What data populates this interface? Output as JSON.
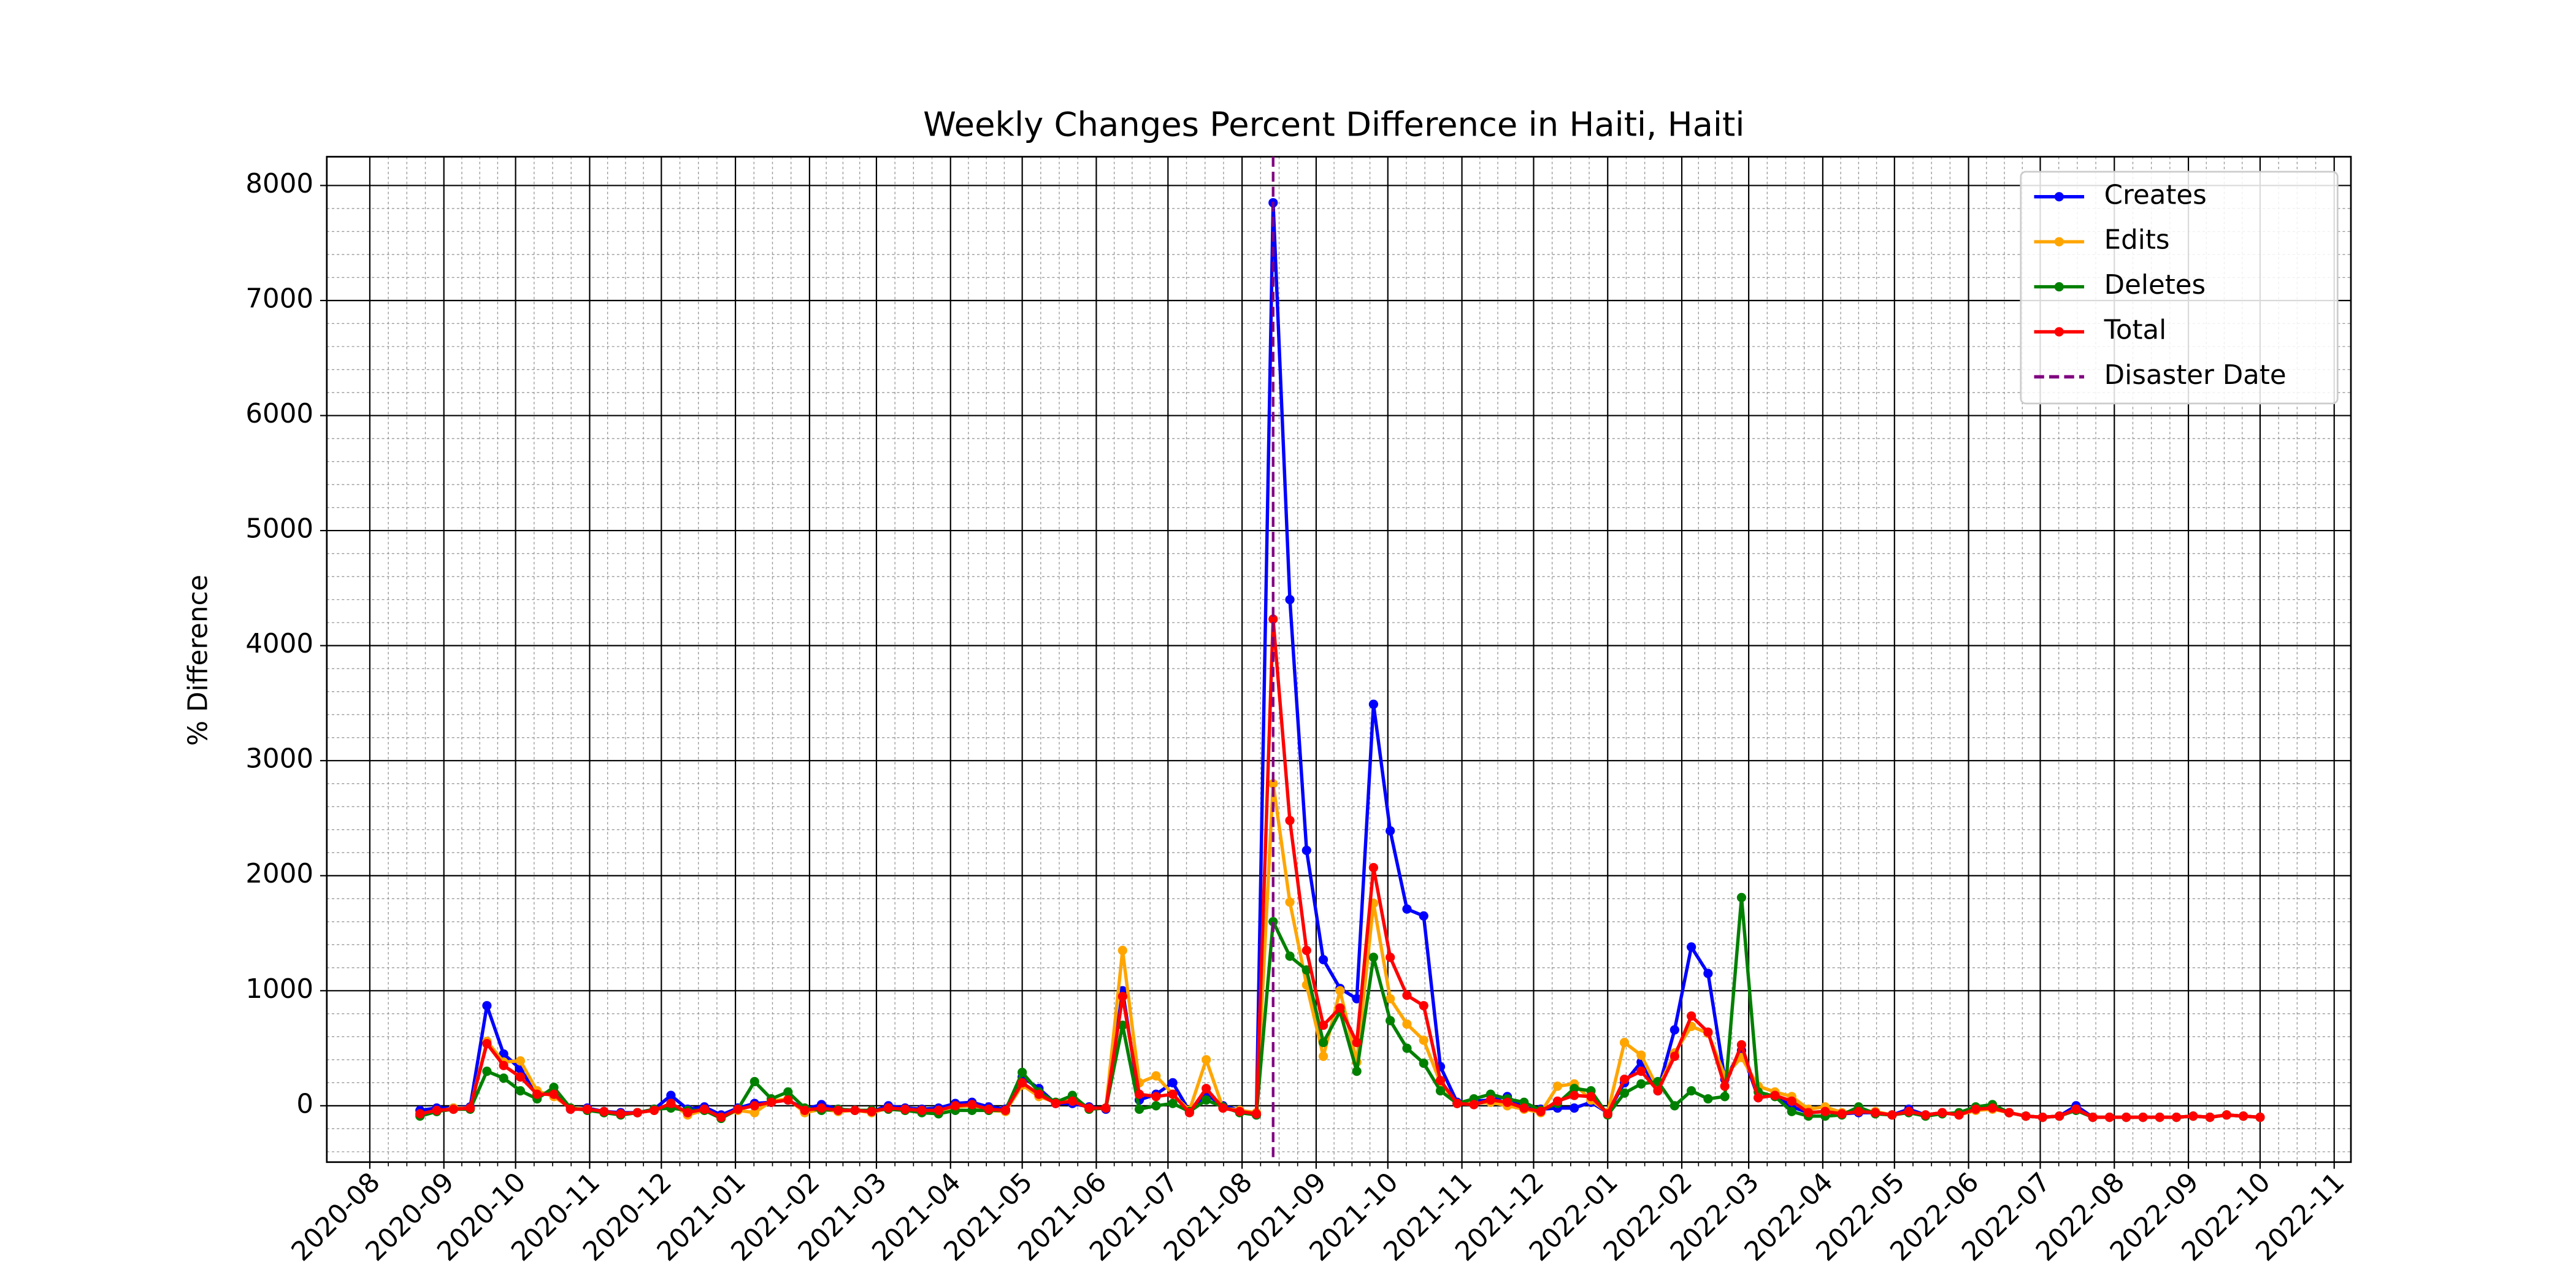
{
  "chart_data": {
    "type": "line",
    "title": "Weekly Changes Percent Difference in Haiti, Haiti",
    "y_label": "% Difference",
    "x": [
      "2020-08-22",
      "2020-08-29",
      "2020-09-05",
      "2020-09-12",
      "2020-09-19",
      "2020-09-26",
      "2020-10-03",
      "2020-10-10",
      "2020-10-17",
      "2020-10-24",
      "2020-10-31",
      "2020-11-07",
      "2020-11-14",
      "2020-11-21",
      "2020-11-28",
      "2020-12-05",
      "2020-12-12",
      "2020-12-19",
      "2020-12-26",
      "2021-01-02",
      "2021-01-09",
      "2021-01-16",
      "2021-01-23",
      "2021-01-30",
      "2021-02-06",
      "2021-02-13",
      "2021-02-20",
      "2021-02-27",
      "2021-03-06",
      "2021-03-13",
      "2021-03-20",
      "2021-03-27",
      "2021-04-03",
      "2021-04-10",
      "2021-04-17",
      "2021-04-24",
      "2021-05-01",
      "2021-05-08",
      "2021-05-15",
      "2021-05-22",
      "2021-05-29",
      "2021-06-05",
      "2021-06-12",
      "2021-06-19",
      "2021-06-26",
      "2021-07-03",
      "2021-07-10",
      "2021-07-17",
      "2021-07-24",
      "2021-07-31",
      "2021-08-07",
      "2021-08-14",
      "2021-08-21",
      "2021-08-28",
      "2021-09-04",
      "2021-09-11",
      "2021-09-18",
      "2021-09-25",
      "2021-10-02",
      "2021-10-09",
      "2021-10-16",
      "2021-10-23",
      "2021-10-30",
      "2021-11-06",
      "2021-11-13",
      "2021-11-20",
      "2021-11-27",
      "2021-12-04",
      "2021-12-11",
      "2021-12-18",
      "2021-12-25",
      "2022-01-01",
      "2022-01-08",
      "2022-01-15",
      "2022-01-22",
      "2022-01-29",
      "2022-02-05",
      "2022-02-12",
      "2022-02-19",
      "2022-02-26",
      "2022-03-05",
      "2022-03-12",
      "2022-03-19",
      "2022-03-26",
      "2022-04-02",
      "2022-04-09",
      "2022-04-16",
      "2022-04-23",
      "2022-04-30",
      "2022-05-07",
      "2022-05-14",
      "2022-05-21",
      "2022-05-28",
      "2022-06-04",
      "2022-06-11",
      "2022-06-18",
      "2022-06-25",
      "2022-07-02",
      "2022-07-09",
      "2022-07-16",
      "2022-07-23",
      "2022-07-30",
      "2022-08-06",
      "2022-08-13",
      "2022-08-20",
      "2022-08-27",
      "2022-09-03",
      "2022-09-10",
      "2022-09-17",
      "2022-09-24",
      "2022-10-01"
    ],
    "series": [
      {
        "name": "Creates",
        "color": "#0000ff",
        "values": [
          -40,
          -20,
          -20,
          -10,
          870,
          450,
          320,
          100,
          120,
          -30,
          -20,
          -50,
          -60,
          -60,
          -30,
          90,
          -30,
          -10,
          -80,
          -20,
          20,
          30,
          50,
          -30,
          10,
          -30,
          -40,
          -50,
          0,
          -20,
          -30,
          -20,
          20,
          30,
          -10,
          -30,
          250,
          150,
          20,
          20,
          -10,
          -30,
          1000,
          50,
          100,
          200,
          -50,
          100,
          0,
          -40,
          -80,
          7850,
          4400,
          2220,
          1270,
          1020,
          930,
          3490,
          2390,
          1710,
          1650,
          340,
          30,
          40,
          50,
          80,
          -20,
          -30,
          -20,
          -20,
          30,
          -60,
          200,
          380,
          130,
          660,
          1380,
          1150,
          230,
          480,
          70,
          100,
          -10,
          -60,
          -50,
          -70,
          -60,
          -60,
          -80,
          -30,
          -80,
          -60,
          -80,
          -30,
          -20,
          -60,
          -90,
          -100,
          -90,
          0,
          -100,
          -100,
          -100,
          -100,
          -100,
          -100,
          -90,
          -100,
          -80,
          -90,
          -100
        ]
      },
      {
        "name": "Edits",
        "color": "#ffa500",
        "values": [
          -80,
          -50,
          -20,
          -20,
          560,
          380,
          390,
          130,
          80,
          -20,
          -30,
          -60,
          -70,
          -60,
          -40,
          20,
          -80,
          -40,
          -100,
          -40,
          -60,
          40,
          60,
          -60,
          -30,
          -50,
          -40,
          -60,
          -20,
          -40,
          -50,
          -40,
          -10,
          0,
          -40,
          -50,
          180,
          80,
          30,
          60,
          -30,
          -20,
          1350,
          200,
          260,
          100,
          -40,
          400,
          -20,
          -40,
          -60,
          2800,
          1770,
          1050,
          430,
          1000,
          380,
          1760,
          930,
          710,
          570,
          200,
          20,
          20,
          30,
          0,
          -30,
          -60,
          170,
          190,
          50,
          -60,
          550,
          440,
          150,
          460,
          690,
          630,
          260,
          420,
          170,
          120,
          80,
          -30,
          -10,
          -60,
          -40,
          -50,
          -80,
          -50,
          -80,
          -60,
          -80,
          -40,
          -30,
          -60,
          -90,
          -100,
          -90,
          -30,
          -100,
          -100,
          -100,
          -100,
          -100,
          -100,
          -90,
          -100,
          -80,
          -90,
          -100
        ]
      },
      {
        "name": "Deletes",
        "color": "#008000",
        "values": [
          -90,
          -50,
          -30,
          -30,
          300,
          240,
          130,
          60,
          160,
          -20,
          -40,
          -60,
          -80,
          -60,
          -30,
          -20,
          -40,
          -40,
          -110,
          -30,
          210,
          60,
          120,
          -20,
          -40,
          -30,
          -40,
          -40,
          -30,
          -40,
          -60,
          -70,
          -40,
          -40,
          -40,
          -40,
          290,
          120,
          30,
          90,
          -30,
          -20,
          700,
          -30,
          0,
          20,
          -50,
          50,
          -10,
          -60,
          -80,
          1600,
          1300,
          1180,
          550,
          820,
          300,
          1290,
          740,
          500,
          370,
          130,
          20,
          60,
          100,
          60,
          30,
          -40,
          20,
          150,
          130,
          -80,
          110,
          190,
          210,
          0,
          130,
          60,
          80,
          1810,
          120,
          80,
          -50,
          -90,
          -90,
          -80,
          -10,
          -70,
          -80,
          -60,
          -90,
          -70,
          -60,
          -10,
          10,
          -60,
          -90,
          -100,
          -90,
          -40,
          -100,
          -100,
          -100,
          -100,
          -100,
          -100,
          -90,
          -100,
          -80,
          -90,
          -100
        ]
      },
      {
        "name": "Total",
        "color": "#ff0000",
        "values": [
          -70,
          -40,
          -30,
          -20,
          540,
          350,
          250,
          100,
          100,
          -30,
          -30,
          -50,
          -70,
          -60,
          -40,
          20,
          -60,
          -30,
          -100,
          -30,
          0,
          30,
          50,
          -40,
          -20,
          -40,
          -40,
          -50,
          -20,
          -30,
          -40,
          -40,
          0,
          10,
          -30,
          -40,
          200,
          100,
          20,
          40,
          -20,
          -20,
          950,
          100,
          80,
          100,
          -60,
          150,
          -20,
          -50,
          -70,
          4230,
          2480,
          1350,
          700,
          850,
          550,
          2070,
          1290,
          960,
          870,
          220,
          20,
          10,
          50,
          30,
          -20,
          -50,
          40,
          90,
          80,
          -70,
          230,
          300,
          130,
          430,
          780,
          640,
          170,
          530,
          70,
          90,
          40,
          -60,
          -50,
          -70,
          -50,
          -60,
          -80,
          -50,
          -80,
          -60,
          -80,
          -30,
          -20,
          -60,
          -90,
          -100,
          -90,
          -30,
          -100,
          -100,
          -100,
          -100,
          -100,
          -100,
          -90,
          -100,
          -80,
          -90,
          -100
        ]
      }
    ],
    "disaster": {
      "label": "Disaster Date",
      "date": "2021-08-14",
      "color": "#800080"
    },
    "xlim": [
      "2020-07-14",
      "2022-11-08"
    ],
    "xticks": [
      "2020-08",
      "2020-09",
      "2020-10",
      "2020-11",
      "2020-12",
      "2021-01",
      "2021-02",
      "2021-03",
      "2021-04",
      "2021-05",
      "2021-06",
      "2021-07",
      "2021-08",
      "2021-09",
      "2021-10",
      "2021-11",
      "2021-12",
      "2022-01",
      "2022-02",
      "2022-03",
      "2022-04",
      "2022-05",
      "2022-06",
      "2022-07",
      "2022-08",
      "2022-09",
      "2022-10",
      "2022-11"
    ],
    "ylim": [
      -490,
      8250
    ],
    "yticks": [
      0,
      1000,
      2000,
      3000,
      4000,
      5000,
      6000,
      7000,
      8000
    ],
    "grid": true,
    "minor_grid": true,
    "legend": "upper right"
  }
}
